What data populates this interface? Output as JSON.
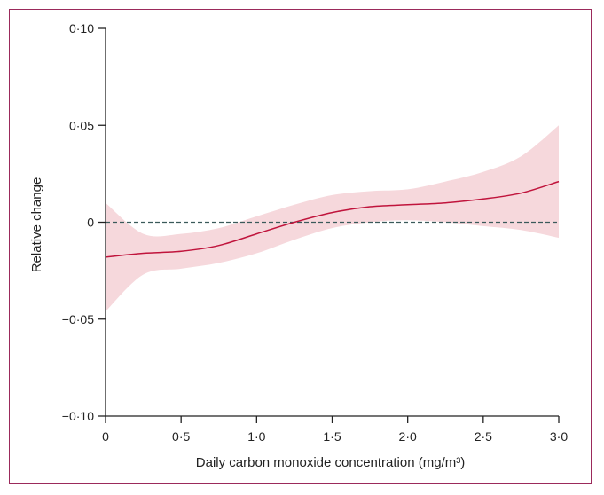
{
  "chart_data": {
    "type": "line",
    "title": "",
    "xlabel": "Daily carbon monoxide concentration (mg/m³)",
    "ylabel": "Relative change",
    "xlim": [
      0,
      3.0
    ],
    "ylim": [
      -0.1,
      0.1
    ],
    "x_ticks": [
      {
        "value": 0,
        "label": "0"
      },
      {
        "value": 0.5,
        "label": "0·5"
      },
      {
        "value": 1.0,
        "label": "1·0"
      },
      {
        "value": 1.5,
        "label": "1·5"
      },
      {
        "value": 2.0,
        "label": "2·0"
      },
      {
        "value": 2.5,
        "label": "2·5"
      },
      {
        "value": 3.0,
        "label": "3·0"
      }
    ],
    "y_ticks": [
      {
        "value": 0.1,
        "label": "0·10"
      },
      {
        "value": 0.05,
        "label": "0·05"
      },
      {
        "value": 0,
        "label": "0"
      },
      {
        "value": -0.05,
        "label": "−0·05"
      },
      {
        "value": -0.1,
        "label": "−0·10"
      }
    ],
    "reference_line": {
      "y": 0,
      "style": "dashed"
    },
    "series": [
      {
        "x": [
          0.0,
          0.25,
          0.5,
          0.75,
          1.0,
          1.25,
          1.5,
          1.75,
          2.0,
          2.25,
          2.5,
          2.75,
          3.0
        ],
        "y": [
          -0.018,
          -0.016,
          -0.015,
          -0.012,
          -0.006,
          0.0,
          0.005,
          0.008,
          0.009,
          0.01,
          0.012,
          0.015,
          0.021
        ],
        "lower": [
          -0.046,
          -0.027,
          -0.024,
          -0.021,
          -0.016,
          -0.009,
          -0.003,
          0.0,
          0.001,
          0.0,
          -0.002,
          -0.004,
          -0.008
        ],
        "upper": [
          0.01,
          -0.006,
          -0.006,
          -0.003,
          0.003,
          0.009,
          0.014,
          0.016,
          0.017,
          0.021,
          0.026,
          0.034,
          0.05
        ]
      }
    ],
    "colors": {
      "line": "#c0143c",
      "band": "#f6d8dc",
      "frame": "#9b2a5b",
      "axis": "#222222",
      "reference": "#3a5a5a"
    },
    "grid": false
  }
}
